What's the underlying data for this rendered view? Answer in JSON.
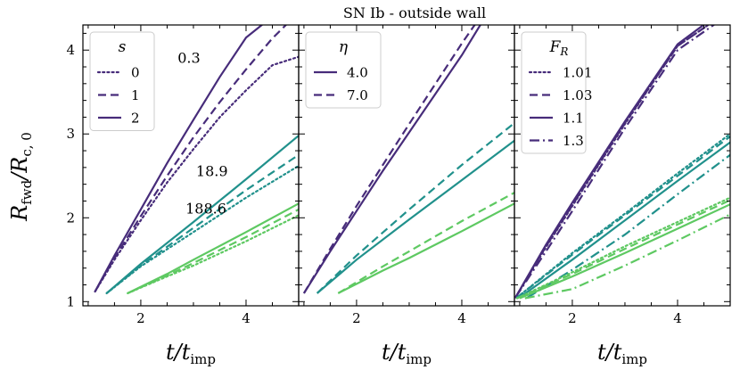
{
  "chart_data": {
    "title": "SN Ib - outside wall",
    "xlabel": "t/t_imp",
    "ylabel": "R_fwd/R_c,0",
    "xlim": [
      0.9,
      5.0
    ],
    "ylim": [
      0.95,
      4.3
    ],
    "xticks": [
      "2",
      "4"
    ],
    "yticks": [
      "1",
      "2",
      "3",
      "4"
    ],
    "colors": {
      "dark": "#472c7a",
      "mid": "#21918c",
      "light": "#5ec962"
    },
    "panels": [
      {
        "type": "line",
        "legend_title": "s",
        "legend": [
          {
            "label": "0",
            "dash": "dotted"
          },
          {
            "label": "1",
            "dash": "dashed"
          },
          {
            "label": "2",
            "dash": "solid"
          }
        ],
        "annotations": [
          "0.3",
          "18.9",
          "188.6"
        ],
        "series": [
          {
            "name": "0.3, s=2",
            "color": "dark",
            "dash": "solid",
            "x": [
              1.13,
              1.5,
              2.0,
              2.5,
              3.0,
              3.5,
              4.0,
              4.4
            ],
            "y": [
              1.12,
              1.55,
              2.1,
              2.65,
              3.17,
              3.68,
              4.15,
              4.35
            ]
          },
          {
            "name": "0.3, s=1",
            "color": "dark",
            "dash": "dashed",
            "x": [
              1.13,
              1.5,
              2.0,
              2.5,
              3.0,
              3.5,
              4.0,
              4.5,
              5.0
            ],
            "y": [
              1.12,
              1.52,
              2.02,
              2.5,
              2.96,
              3.38,
              3.77,
              4.14,
              4.45
            ]
          },
          {
            "name": "0.3, s=0",
            "color": "dark",
            "dash": "dotted",
            "x": [
              1.13,
              1.5,
              2.0,
              2.5,
              3.0,
              3.5,
              4.0,
              4.5,
              5.0
            ],
            "y": [
              1.12,
              1.5,
              1.97,
              2.42,
              2.82,
              3.2,
              3.52,
              3.82,
              3.92
            ]
          },
          {
            "name": "18.9, s=2",
            "color": "mid",
            "dash": "solid",
            "x": [
              1.35,
              2.0,
              3.0,
              4.0,
              5.0
            ],
            "y": [
              1.1,
              1.45,
              1.95,
              2.46,
              2.98
            ]
          },
          {
            "name": "18.9, s=1",
            "color": "mid",
            "dash": "dashed",
            "x": [
              1.35,
              2.0,
              3.0,
              4.0,
              5.0
            ],
            "y": [
              1.1,
              1.43,
              1.88,
              2.33,
              2.75
            ]
          },
          {
            "name": "18.9, s=0",
            "color": "mid",
            "dash": "dotted",
            "x": [
              1.35,
              2.0,
              3.0,
              4.0,
              5.0
            ],
            "y": [
              1.1,
              1.42,
              1.83,
              2.24,
              2.62
            ]
          },
          {
            "name": "188.6, s=2",
            "color": "light",
            "dash": "solid",
            "x": [
              1.75,
              2.5,
              3.0,
              4.0,
              5.0
            ],
            "y": [
              1.1,
              1.33,
              1.5,
              1.83,
              2.17
            ]
          },
          {
            "name": "188.6, s=1",
            "color": "light",
            "dash": "dashed",
            "x": [
              1.75,
              2.5,
              3.0,
              4.0,
              5.0
            ],
            "y": [
              1.1,
              1.31,
              1.46,
              1.77,
              2.1
            ]
          },
          {
            "name": "188.6, s=0",
            "color": "light",
            "dash": "dotted",
            "x": [
              1.75,
              2.5,
              3.0,
              4.0,
              5.0
            ],
            "y": [
              1.1,
              1.3,
              1.43,
              1.72,
              2.03
            ]
          }
        ]
      },
      {
        "type": "line",
        "legend_title": "η",
        "legend": [
          {
            "label": "4.0",
            "dash": "solid"
          },
          {
            "label": "7.0",
            "dash": "dashed"
          }
        ],
        "series": [
          {
            "name": "dark, η=4.0",
            "color": "dark",
            "dash": "solid",
            "x": [
              1.0,
              1.5,
              2.0,
              2.5,
              3.0,
              3.5,
              4.0,
              4.4
            ],
            "y": [
              1.1,
              1.6,
              2.08,
              2.56,
              3.02,
              3.48,
              3.94,
              4.35
            ]
          },
          {
            "name": "dark, η=7.0",
            "color": "dark",
            "dash": "dashed",
            "x": [
              1.0,
              1.5,
              2.0,
              2.5,
              3.0,
              3.5,
              4.0,
              4.3
            ],
            "y": [
              1.1,
              1.63,
              2.14,
              2.63,
              3.12,
              3.6,
              4.08,
              4.35
            ]
          },
          {
            "name": "mid, η=4.0",
            "color": "mid",
            "dash": "solid",
            "x": [
              1.25,
              2.0,
              3.0,
              4.0,
              5.0
            ],
            "y": [
              1.1,
              1.5,
              1.98,
              2.45,
              2.92
            ]
          },
          {
            "name": "mid, η=7.0",
            "color": "mid",
            "dash": "dashed",
            "x": [
              1.25,
              2.0,
              3.0,
              4.0,
              5.0
            ],
            "y": [
              1.1,
              1.55,
              2.1,
              2.63,
              3.13
            ]
          },
          {
            "name": "light, η=4.0",
            "color": "light",
            "dash": "solid",
            "x": [
              1.65,
              2.5,
              3.0,
              4.0,
              5.0
            ],
            "y": [
              1.1,
              1.37,
              1.52,
              1.84,
              2.17
            ]
          },
          {
            "name": "light, η=7.0",
            "color": "light",
            "dash": "dashed",
            "x": [
              1.65,
              2.5,
              3.0,
              4.0,
              5.0
            ],
            "y": [
              1.1,
              1.42,
              1.6,
              1.96,
              2.3
            ]
          }
        ]
      },
      {
        "type": "line",
        "legend_title": "F_R",
        "legend": [
          {
            "label": "1.01",
            "dash": "dotted"
          },
          {
            "label": "1.03",
            "dash": "dashed"
          },
          {
            "label": "1.1",
            "dash": "solid"
          },
          {
            "label": "1.3",
            "dash": "dashdot"
          }
        ],
        "series": [
          {
            "name": "dark, F_R=1.01",
            "color": "dark",
            "dash": "dotted",
            "x": [
              0.92,
              1.5,
              2.0,
              3.0,
              4.0,
              4.7
            ],
            "y": [
              1.05,
              1.65,
              2.14,
              3.12,
              4.05,
              4.35
            ]
          },
          {
            "name": "dark, F_R=1.03",
            "color": "dark",
            "dash": "dashed",
            "x": [
              0.92,
              1.5,
              2.0,
              3.0,
              4.0,
              4.7
            ],
            "y": [
              1.05,
              1.66,
              2.15,
              3.13,
              4.05,
              4.35
            ]
          },
          {
            "name": "dark, F_R=1.1",
            "color": "dark",
            "dash": "solid",
            "x": [
              0.92,
              1.5,
              2.0,
              3.0,
              4.0,
              4.6
            ],
            "y": [
              1.05,
              1.68,
              2.18,
              3.15,
              4.07,
              4.35
            ]
          },
          {
            "name": "dark, F_R=1.3",
            "color": "dark",
            "dash": "dashdot",
            "x": [
              0.92,
              1.5,
              2.0,
              3.0,
              4.0,
              4.8
            ],
            "y": [
              1.05,
              1.6,
              2.08,
              3.07,
              4.0,
              4.35
            ]
          },
          {
            "name": "mid, F_R=1.01",
            "color": "mid",
            "dash": "dotted",
            "x": [
              0.95,
              2.0,
              3.0,
              4.0,
              5.0
            ],
            "y": [
              1.05,
              1.58,
              2.05,
              2.53,
              3.0
            ]
          },
          {
            "name": "mid, F_R=1.03",
            "color": "mid",
            "dash": "dashed",
            "x": [
              0.95,
              2.0,
              3.0,
              4.0,
              5.0
            ],
            "y": [
              1.05,
              1.56,
              2.03,
              2.5,
              2.97
            ]
          },
          {
            "name": "mid, F_R=1.1",
            "color": "mid",
            "dash": "solid",
            "x": [
              1.0,
              2.0,
              3.0,
              4.0,
              5.0
            ],
            "y": [
              1.05,
              1.5,
              1.97,
              2.44,
              2.9
            ]
          },
          {
            "name": "mid, F_R=1.3",
            "color": "mid",
            "dash": "dashdot",
            "x": [
              1.15,
              2.0,
              3.0,
              4.0,
              5.0
            ],
            "y": [
              1.05,
              1.38,
              1.8,
              2.28,
              2.75
            ]
          },
          {
            "name": "light, F_R=1.01",
            "color": "light",
            "dash": "dotted",
            "x": [
              0.95,
              2.0,
              3.0,
              4.0,
              5.0
            ],
            "y": [
              1.04,
              1.35,
              1.66,
              1.95,
              2.24
            ]
          },
          {
            "name": "light, F_R=1.03",
            "color": "light",
            "dash": "dashed",
            "x": [
              0.95,
              2.0,
              3.0,
              4.0,
              5.0
            ],
            "y": [
              1.04,
              1.33,
              1.63,
              1.92,
              2.21
            ]
          },
          {
            "name": "light, F_R=1.1",
            "color": "light",
            "dash": "solid",
            "x": [
              1.0,
              2.0,
              3.0,
              4.0,
              5.0
            ],
            "y": [
              1.04,
              1.3,
              1.58,
              1.87,
              2.16
            ]
          },
          {
            "name": "light, F_R=1.3",
            "color": "light",
            "dash": "dashdot",
            "x": [
              1.1,
              2.0,
              3.0,
              4.0,
              5.0
            ],
            "y": [
              1.04,
              1.15,
              1.43,
              1.73,
              2.04
            ]
          }
        ]
      }
    ]
  }
}
